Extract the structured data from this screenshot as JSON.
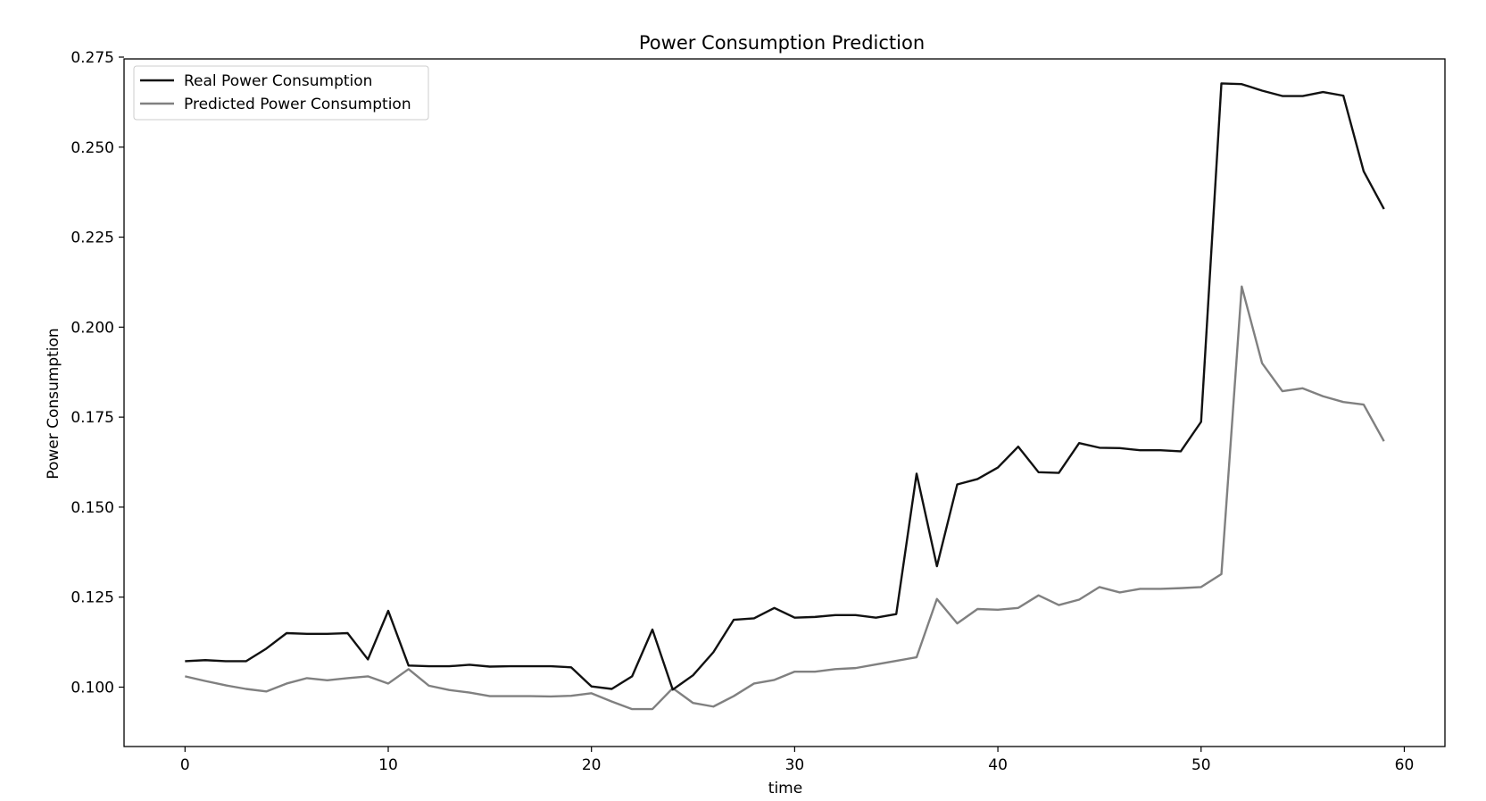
{
  "chart_data": {
    "type": "line",
    "title": "Power Consumption Prediction",
    "xlabel": "time",
    "ylabel": "Power Consumption",
    "xlim": [
      -3,
      62
    ],
    "ylim": [
      0.0835,
      0.2745
    ],
    "xticks": [
      0,
      10,
      20,
      30,
      40,
      50,
      60
    ],
    "yticks": [
      0.1,
      0.125,
      0.15,
      0.175,
      0.2,
      0.225,
      0.25,
      0.275
    ],
    "ytick_labels": [
      "0.100",
      "0.125",
      "0.150",
      "0.175",
      "0.200",
      "0.225",
      "0.250",
      "0.275"
    ],
    "grid": false,
    "legend_position": "top-left",
    "series": [
      {
        "name": "Real Power Consumption",
        "color": "#111111",
        "values": [
          0.1072,
          0.1075,
          0.1072,
          0.1072,
          0.1107,
          0.115,
          0.1148,
          0.1148,
          0.115,
          0.1077,
          0.1212,
          0.106,
          0.1058,
          0.1058,
          0.1062,
          0.1057,
          0.1058,
          0.1058,
          0.1058,
          0.1055,
          0.1002,
          0.0995,
          0.103,
          0.116,
          0.0993,
          0.1033,
          0.1097,
          0.1187,
          0.1191,
          0.122,
          0.1193,
          0.1195,
          0.12,
          0.12,
          0.1193,
          0.1203,
          0.1593,
          0.1336,
          0.1563,
          0.1578,
          0.161,
          0.1668,
          0.1597,
          0.1595,
          0.1678,
          0.1665,
          0.1664,
          0.1658,
          0.1658,
          0.1655,
          0.1737,
          0.2677,
          0.2675,
          0.2657,
          0.2642,
          0.2642,
          0.2653,
          0.2643,
          0.2433,
          0.2328
        ]
      },
      {
        "name": "Predicted Power Consumption",
        "color": "#808080",
        "values": [
          0.103,
          0.1017,
          0.1005,
          0.0995,
          0.0988,
          0.101,
          0.1025,
          0.1019,
          0.1025,
          0.103,
          0.101,
          0.105,
          0.1004,
          0.0992,
          0.0985,
          0.0975,
          0.0975,
          0.0975,
          0.0974,
          0.0976,
          0.0983,
          0.096,
          0.0939,
          0.0939,
          0.0997,
          0.0956,
          0.0946,
          0.0975,
          0.101,
          0.102,
          0.1043,
          0.1043,
          0.105,
          0.1053,
          0.1063,
          0.1073,
          0.1083,
          0.1245,
          0.1177,
          0.1217,
          0.1215,
          0.122,
          0.1255,
          0.1228,
          0.1243,
          0.1278,
          0.1263,
          0.1273,
          0.1273,
          0.1275,
          0.1278,
          0.1314,
          0.2113,
          0.19,
          0.1822,
          0.183,
          0.1808,
          0.1792,
          0.1785,
          0.1683
        ]
      }
    ]
  }
}
